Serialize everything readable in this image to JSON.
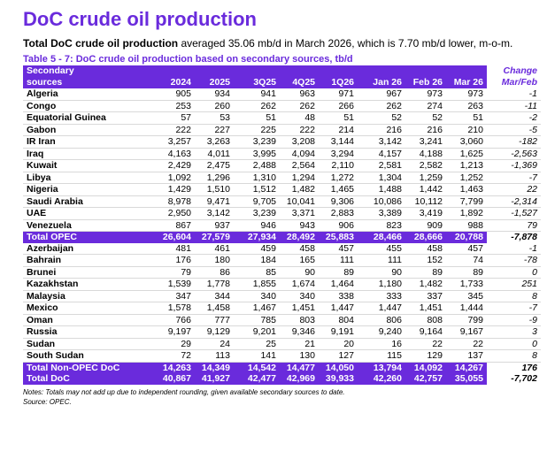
{
  "title": "DoC crude oil production",
  "subtitle": {
    "bold": "Total DoC crude oil production",
    "rest": " averaged 35.06 mb/d in March 2026, which is 7.70 mb/d lower, m-o-m."
  },
  "caption": "Table 5 - 7: DoC crude oil production based on secondary sources, tb/d",
  "header": {
    "label_line1": "Secondary",
    "label_line2": "sources",
    "change_line1": "Change",
    "change_line2": "Mar/Feb",
    "columns": [
      "2024",
      "2025",
      "3Q25",
      "4Q25",
      "1Q26",
      "Jan 26",
      "Feb 26",
      "Mar 26"
    ]
  },
  "opec_rows": [
    {
      "name": "Algeria",
      "values": [
        "905",
        "934",
        "941",
        "963",
        "971",
        "967",
        "973",
        "973"
      ],
      "change": "-1"
    },
    {
      "name": "Congo",
      "values": [
        "253",
        "260",
        "262",
        "262",
        "266",
        "262",
        "274",
        "263"
      ],
      "change": "-11"
    },
    {
      "name": "Equatorial Guinea",
      "values": [
        "57",
        "53",
        "51",
        "48",
        "51",
        "52",
        "52",
        "51"
      ],
      "change": "-2"
    },
    {
      "name": "Gabon",
      "values": [
        "222",
        "227",
        "225",
        "222",
        "214",
        "216",
        "216",
        "210"
      ],
      "change": "-5"
    },
    {
      "name": "IR Iran",
      "values": [
        "3,257",
        "3,263",
        "3,239",
        "3,208",
        "3,144",
        "3,142",
        "3,241",
        "3,060"
      ],
      "change": "-182"
    },
    {
      "name": "Iraq",
      "values": [
        "4,163",
        "4,011",
        "3,995",
        "4,094",
        "3,294",
        "4,157",
        "4,188",
        "1,625"
      ],
      "change": "-2,563"
    },
    {
      "name": "Kuwait",
      "values": [
        "2,429",
        "2,475",
        "2,488",
        "2,564",
        "2,110",
        "2,581",
        "2,582",
        "1,213"
      ],
      "change": "-1,369"
    },
    {
      "name": "Libya",
      "values": [
        "1,092",
        "1,296",
        "1,310",
        "1,294",
        "1,272",
        "1,304",
        "1,259",
        "1,252"
      ],
      "change": "-7"
    },
    {
      "name": "Nigeria",
      "values": [
        "1,429",
        "1,510",
        "1,512",
        "1,482",
        "1,465",
        "1,488",
        "1,442",
        "1,463"
      ],
      "change": "22"
    },
    {
      "name": "Saudi Arabia",
      "values": [
        "8,978",
        "9,471",
        "9,705",
        "10,041",
        "9,306",
        "10,086",
        "10,112",
        "7,799"
      ],
      "change": "-2,314"
    },
    {
      "name": "UAE",
      "values": [
        "2,950",
        "3,142",
        "3,239",
        "3,371",
        "2,883",
        "3,389",
        "3,419",
        "1,892"
      ],
      "change": "-1,527"
    },
    {
      "name": "Venezuela",
      "values": [
        "867",
        "937",
        "946",
        "943",
        "906",
        "823",
        "909",
        "988"
      ],
      "change": "79"
    }
  ],
  "total_opec": {
    "name": "Total  OPEC",
    "values": [
      "26,604",
      "27,579",
      "27,934",
      "28,492",
      "25,883",
      "28,466",
      "28,666",
      "20,788"
    ],
    "change": "-7,878"
  },
  "nonopec_rows": [
    {
      "name": "Azerbaijan",
      "values": [
        "481",
        "461",
        "459",
        "458",
        "457",
        "455",
        "458",
        "457"
      ],
      "change": "-1"
    },
    {
      "name": "Bahrain",
      "values": [
        "176",
        "180",
        "184",
        "165",
        "111",
        "111",
        "152",
        "74"
      ],
      "change": "-78"
    },
    {
      "name": "Brunei",
      "values": [
        "79",
        "86",
        "85",
        "90",
        "89",
        "90",
        "89",
        "89"
      ],
      "change": "0"
    },
    {
      "name": "Kazakhstan",
      "values": [
        "1,539",
        "1,778",
        "1,855",
        "1,674",
        "1,464",
        "1,180",
        "1,482",
        "1,733"
      ],
      "change": "251"
    },
    {
      "name": "Malaysia",
      "values": [
        "347",
        "344",
        "340",
        "340",
        "338",
        "333",
        "337",
        "345"
      ],
      "change": "8"
    },
    {
      "name": "Mexico",
      "values": [
        "1,578",
        "1,458",
        "1,467",
        "1,451",
        "1,447",
        "1,447",
        "1,451",
        "1,444"
      ],
      "change": "-7"
    },
    {
      "name": "Oman",
      "values": [
        "766",
        "777",
        "785",
        "803",
        "804",
        "806",
        "808",
        "799"
      ],
      "change": "-9"
    },
    {
      "name": "Russia",
      "values": [
        "9,197",
        "9,129",
        "9,201",
        "9,346",
        "9,191",
        "9,240",
        "9,164",
        "9,167"
      ],
      "change": "3"
    },
    {
      "name": "Sudan",
      "values": [
        "29",
        "24",
        "25",
        "21",
        "20",
        "16",
        "22",
        "22"
      ],
      "change": "0"
    },
    {
      "name": "South Sudan",
      "values": [
        "72",
        "113",
        "141",
        "130",
        "127",
        "115",
        "129",
        "137"
      ],
      "change": "8"
    }
  ],
  "total_nonopec": {
    "name": "Total Non-OPEC DoC",
    "values": [
      "14,263",
      "14,349",
      "14,542",
      "14,477",
      "14,050",
      "13,794",
      "14,092",
      "14,267"
    ],
    "change": "176"
  },
  "total_doc": {
    "name": "Total DoC",
    "values": [
      "40,867",
      "41,927",
      "42,477",
      "42,969",
      "39,933",
      "42,260",
      "42,757",
      "35,055"
    ],
    "change": "-7,702"
  },
  "notes": "Notes: Totals may not add up due to independent rounding, given available secondary sources to date.",
  "source": "Source: OPEC.",
  "colors": {
    "accent": "#6a2bdc"
  }
}
